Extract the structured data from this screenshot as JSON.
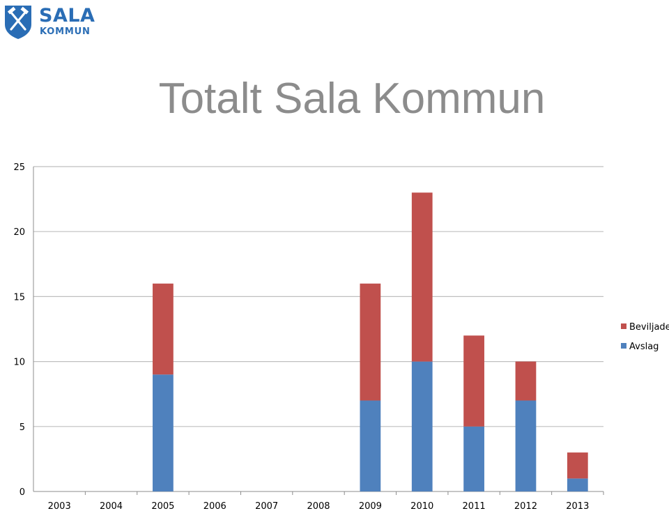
{
  "brand": {
    "name": "SALA",
    "sub": "KOMMUN",
    "color": "#2a6db5"
  },
  "chart_data": {
    "type": "bar",
    "stacked": true,
    "title": "Totalt Sala Kommun",
    "categories": [
      "2003",
      "2004",
      "2005",
      "2006",
      "2007",
      "2008",
      "2009",
      "2010",
      "2011",
      "2012",
      "2013"
    ],
    "series": [
      {
        "name": "Avslag",
        "color": "#4f81bd",
        "values": [
          0,
          0,
          9,
          0,
          0,
          0,
          7,
          10,
          5,
          7,
          1
        ]
      },
      {
        "name": "Beviljade",
        "color": "#c0504d",
        "values": [
          0,
          0,
          7,
          0,
          0,
          0,
          9,
          13,
          7,
          3,
          2
        ]
      }
    ],
    "y_ticks": [
      "0",
      "5",
      "10",
      "15",
      "20",
      "25"
    ],
    "ylim": [
      0,
      25
    ],
    "grid": true,
    "legend": "right",
    "legend_order": [
      "Beviljade",
      "Avslag"
    ]
  }
}
